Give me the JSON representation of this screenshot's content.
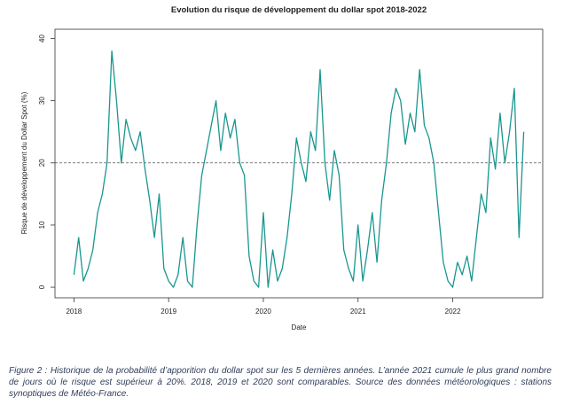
{
  "chart_data": {
    "type": "line",
    "title": "Evolution du risque de développement du dollar spot 2018-2022",
    "xlabel": "Date",
    "ylabel": "Risque de développement du Dollar Spot (%)",
    "x": [
      2018.0,
      2018.05,
      2018.1,
      2018.15,
      2018.2,
      2018.25,
      2018.3,
      2018.35,
      2018.4,
      2018.45,
      2018.5,
      2018.55,
      2018.6,
      2018.65,
      2018.7,
      2018.75,
      2018.8,
      2018.85,
      2018.9,
      2018.95,
      2019.0,
      2019.05,
      2019.1,
      2019.15,
      2019.2,
      2019.25,
      2019.3,
      2019.35,
      2019.4,
      2019.45,
      2019.5,
      2019.55,
      2019.6,
      2019.65,
      2019.7,
      2019.75,
      2019.8,
      2019.85,
      2019.9,
      2019.95,
      2020.0,
      2020.05,
      2020.1,
      2020.15,
      2020.2,
      2020.25,
      2020.3,
      2020.35,
      2020.4,
      2020.45,
      2020.5,
      2020.55,
      2020.6,
      2020.65,
      2020.7,
      2020.75,
      2020.8,
      2020.85,
      2020.9,
      2020.95,
      2021.0,
      2021.05,
      2021.1,
      2021.15,
      2021.2,
      2021.25,
      2021.3,
      2021.35,
      2021.4,
      2021.45,
      2021.5,
      2021.55,
      2021.6,
      2021.65,
      2021.7,
      2021.75,
      2021.8,
      2021.85,
      2021.9,
      2021.95,
      2022.0,
      2022.05,
      2022.1,
      2022.15,
      2022.2,
      2022.25,
      2022.3,
      2022.35,
      2022.4,
      2022.45,
      2022.5,
      2022.55,
      2022.6,
      2022.65,
      2022.7,
      2022.75
    ],
    "values": [
      2,
      8,
      1,
      3,
      6,
      12,
      15,
      20,
      38,
      30,
      20,
      27,
      24,
      22,
      25,
      19,
      14,
      8,
      15,
      3,
      1,
      0,
      2,
      8,
      1,
      0,
      10,
      18,
      22,
      26,
      30,
      22,
      28,
      24,
      27,
      20,
      18,
      5,
      1,
      0,
      12,
      0,
      6,
      1,
      3,
      8,
      15,
      24,
      20,
      17,
      25,
      22,
      35,
      20,
      14,
      22,
      18,
      6,
      3,
      1,
      10,
      1,
      6,
      12,
      4,
      14,
      20,
      28,
      32,
      30,
      23,
      28,
      25,
      35,
      26,
      24,
      20,
      12,
      4,
      1,
      0,
      4,
      2,
      5,
      1,
      8,
      15,
      12,
      24,
      19,
      28,
      20,
      25,
      32,
      8,
      25
    ],
    "color": "#1a9690",
    "xlim": [
      2017.8,
      2022.95
    ],
    "xticks": [
      2018,
      2019,
      2020,
      2021,
      2022
    ],
    "ylim": [
      -1.7,
      41.5
    ],
    "yticks": [
      0,
      10,
      20,
      30,
      40
    ],
    "hline": 20
  },
  "caption": "Figure 2 : Historique de la probabilité d’apporition du dollar spot sur les 5 dernières années. L’année 2021 cumule le plus grand nombre de jours où le risque est supérieur à 20%. 2018, 2019 et 2020 sont comparables. Source des données météorologiques : stations synoptiques de Météo-France."
}
